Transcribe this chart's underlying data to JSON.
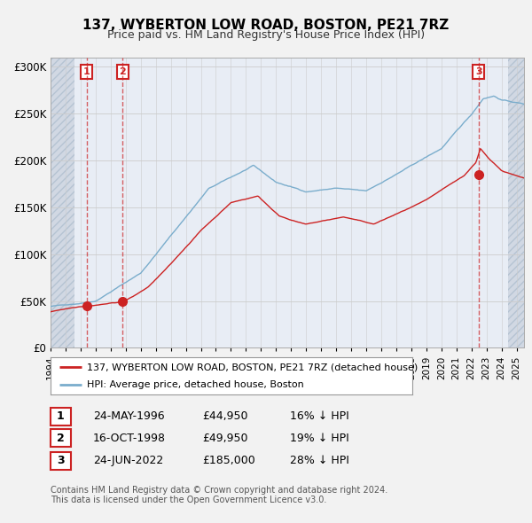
{
  "title": "137, WYBERTON LOW ROAD, BOSTON, PE21 7RZ",
  "subtitle": "Price paid vs. HM Land Registry's House Price Index (HPI)",
  "ylim": [
    0,
    310000
  ],
  "yticks": [
    0,
    50000,
    100000,
    150000,
    200000,
    250000,
    300000
  ],
  "ytick_labels": [
    "£0",
    "£50K",
    "£100K",
    "£150K",
    "£200K",
    "£250K",
    "£300K"
  ],
  "legend_label_red": "137, WYBERTON LOW ROAD, BOSTON, PE21 7RZ (detached house)",
  "legend_label_blue": "HPI: Average price, detached house, Boston",
  "t_years": [
    1996.39,
    1998.79,
    2022.48
  ],
  "t_prices": [
    44950,
    49950,
    185000
  ],
  "t_labels": [
    "1",
    "2",
    "3"
  ],
  "table_data": [
    [
      "1",
      "24-MAY-1996",
      "£44,950",
      "16% ↓ HPI"
    ],
    [
      "2",
      "16-OCT-1998",
      "£49,950",
      "19% ↓ HPI"
    ],
    [
      "3",
      "24-JUN-2022",
      "£185,000",
      "28% ↓ HPI"
    ]
  ],
  "footnote": "Contains HM Land Registry data © Crown copyright and database right 2024.\nThis data is licensed under the Open Government Licence v3.0.",
  "bg_color": "#f2f2f2",
  "plot_bg": "#ffffff",
  "chart_bg": "#e8edf5",
  "red_color": "#cc2222",
  "blue_color": "#7aadcc",
  "hatch_color": "#c8d0dc",
  "grid_color": "#cccccc",
  "xlim_start": 1994.0,
  "xlim_end": 2025.5,
  "hatch1_start": 1994.0,
  "hatch1_end": 1995.58,
  "hatch2_start": 2024.42,
  "hatch2_end": 2025.5
}
